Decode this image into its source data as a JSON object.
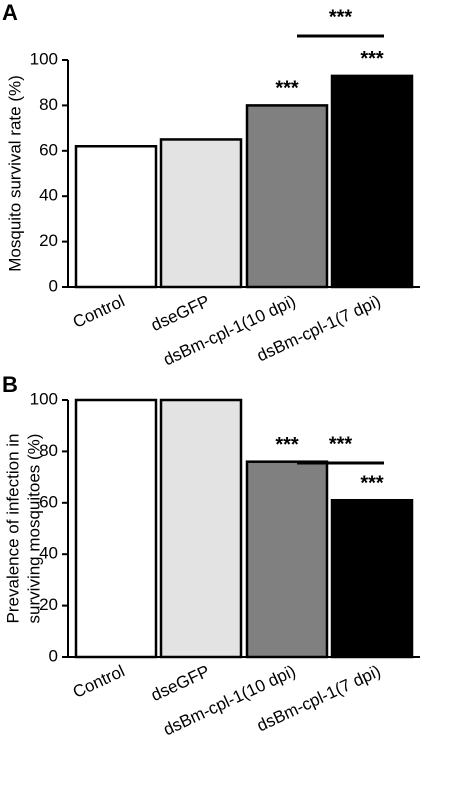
{
  "chart_data": [
    {
      "type": "bar",
      "panel": "A",
      "y_label": [
        "Mosquito survival rate  (%)"
      ],
      "categories": [
        "Control",
        "dseGFP",
        "dsBm-cpl-1(10 dpi)",
        "dsBm-cpl-1(7 dpi)"
      ],
      "values": [
        62,
        65,
        80,
        93
      ],
      "colors": [
        "#ffffff",
        "#e3e3e3",
        "#808080",
        "#000000"
      ],
      "bar_annotations": [
        null,
        null,
        "***",
        "***"
      ],
      "bracket": {
        "text": "***",
        "between": [
          "dsBm-cpl-1(10 dpi)",
          "dsBm-cpl-1(7 dpi)"
        ]
      },
      "ylim": [
        0,
        100
      ],
      "yticks": [
        0,
        20,
        40,
        60,
        80,
        100
      ]
    },
    {
      "type": "bar",
      "panel": "B",
      "y_label": [
        "Prevalence of infection in",
        "surviving mosquitoes (%)"
      ],
      "categories": [
        "Control",
        "dseGFP",
        "dsBm-cpl-1(10 dpi)",
        "dsBm-cpl-1(7 dpi)"
      ],
      "values": [
        100,
        100,
        76,
        61
      ],
      "colors": [
        "#ffffff",
        "#e3e3e3",
        "#808080",
        "#000000"
      ],
      "bar_annotations": [
        null,
        null,
        "***",
        "***"
      ],
      "bracket": {
        "text": "***",
        "between": [
          "dsBm-cpl-1(10 dpi)",
          "dsBm-cpl-1(7 dpi)"
        ]
      },
      "ylim": [
        0,
        100
      ],
      "yticks": [
        0,
        20,
        40,
        60,
        80,
        100
      ]
    }
  ]
}
